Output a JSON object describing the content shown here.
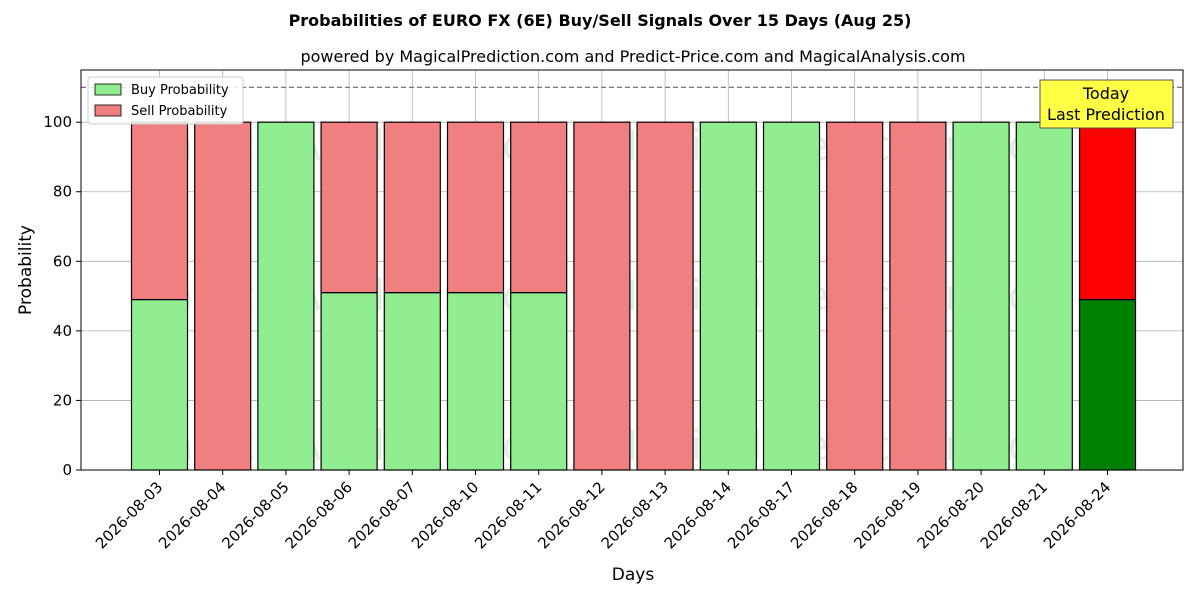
{
  "chart_data": {
    "type": "bar",
    "stacked": true,
    "title": "Probabilities of EURO FX (6E) Buy/Sell Signals Over 15 Days (Aug 25)",
    "subtitle": "powered by MagicalPrediction.com and Predict-Price.com and MagicalAnalysis.com",
    "xlabel": "Days",
    "ylabel": "Probability",
    "ylim": [
      0,
      115
    ],
    "yticks": [
      0,
      20,
      40,
      60,
      80,
      100
    ],
    "reference_line": 110,
    "grid": true,
    "legend_position": "top-left",
    "categories": [
      "2026-08-03",
      "2026-08-04",
      "2026-08-05",
      "2026-08-06",
      "2026-08-07",
      "2026-08-10",
      "2026-08-11",
      "2026-08-12",
      "2026-08-13",
      "2026-08-14",
      "2026-08-17",
      "2026-08-18",
      "2026-08-19",
      "2026-08-20",
      "2026-08-21",
      "2026-08-24"
    ],
    "series": [
      {
        "name": "Buy Probability",
        "color": "#90ee90",
        "highlight_color": "#008000",
        "values": [
          49,
          0,
          100,
          51,
          51,
          51,
          51,
          0,
          0,
          100,
          100,
          0,
          0,
          100,
          100,
          49
        ]
      },
      {
        "name": "Sell Probability",
        "color": "#f08080",
        "highlight_color": "#ff0000",
        "values": [
          51,
          100,
          0,
          49,
          49,
          49,
          49,
          100,
          100,
          0,
          0,
          100,
          100,
          0,
          0,
          51
        ]
      }
    ],
    "highlight_index": 15,
    "annotation": {
      "lines": [
        "Today",
        "Last Prediction"
      ],
      "background": "#ffff44"
    },
    "watermarks": [
      "MagicalAnalysis.com",
      "MagicalPrediction.com"
    ]
  }
}
